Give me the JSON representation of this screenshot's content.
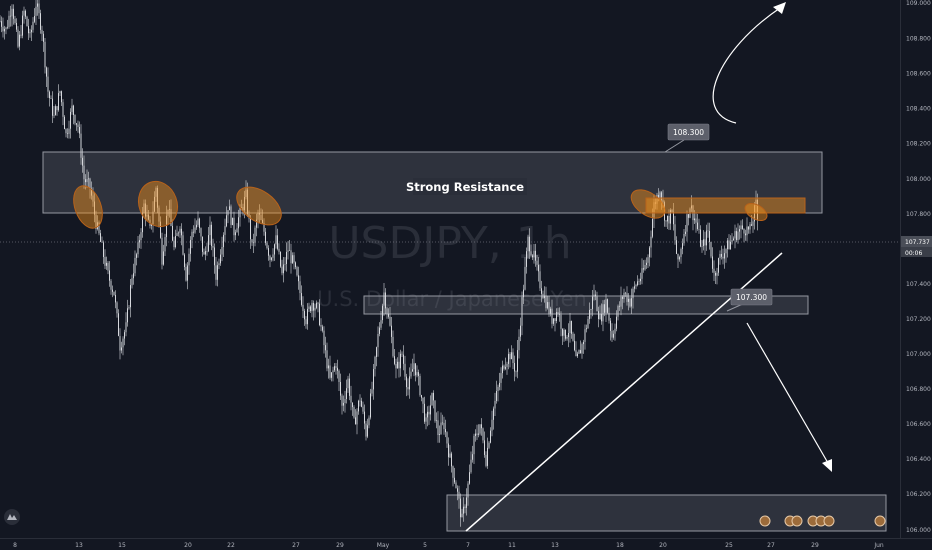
{
  "chart_data": {
    "type": "candlestick",
    "title": "USDJPY, 1h",
    "symbol": "USDJPY",
    "interval": "1h",
    "subtitle": "U.S. Dollar / Japanese Yen",
    "x_tick_labels": [
      "8",
      "13",
      "15",
      "20",
      "22",
      "27",
      "29",
      "May",
      "5",
      "7",
      "11",
      "13",
      "18",
      "20",
      "25",
      "27",
      "29",
      "Jun"
    ],
    "y_tick_labels": [
      "109.000",
      "108.800",
      "108.600",
      "108.400",
      "108.200",
      "108.000",
      "107.800",
      "107.600",
      "107.400",
      "107.200",
      "107.000",
      "106.800",
      "106.600",
      "106.400",
      "106.200",
      "106.000"
    ],
    "ylim": [
      105.99,
      109.02
    ],
    "current_price": "107.737",
    "countdown": "00:06",
    "price_path": [
      {
        "x": 0,
        "y": 108.9
      },
      {
        "x": 6,
        "y": 108.85
      },
      {
        "x": 12,
        "y": 109.0
      },
      {
        "x": 18,
        "y": 108.75
      },
      {
        "x": 24,
        "y": 108.95
      },
      {
        "x": 30,
        "y": 108.8
      },
      {
        "x": 36,
        "y": 109.0
      },
      {
        "x": 42,
        "y": 108.85
      },
      {
        "x": 48,
        "y": 108.5
      },
      {
        "x": 54,
        "y": 108.35
      },
      {
        "x": 60,
        "y": 108.5
      },
      {
        "x": 66,
        "y": 108.25
      },
      {
        "x": 72,
        "y": 108.4
      },
      {
        "x": 78,
        "y": 108.3
      },
      {
        "x": 84,
        "y": 108.0
      },
      {
        "x": 90,
        "y": 107.95
      },
      {
        "x": 96,
        "y": 107.75
      },
      {
        "x": 102,
        "y": 107.6
      },
      {
        "x": 108,
        "y": 107.45
      },
      {
        "x": 114,
        "y": 107.35
      },
      {
        "x": 120,
        "y": 107.05
      },
      {
        "x": 126,
        "y": 107.15
      },
      {
        "x": 132,
        "y": 107.45
      },
      {
        "x": 138,
        "y": 107.6
      },
      {
        "x": 144,
        "y": 107.85
      },
      {
        "x": 150,
        "y": 107.7
      },
      {
        "x": 156,
        "y": 107.95
      },
      {
        "x": 162,
        "y": 107.55
      },
      {
        "x": 168,
        "y": 107.85
      },
      {
        "x": 174,
        "y": 107.6
      },
      {
        "x": 180,
        "y": 107.75
      },
      {
        "x": 186,
        "y": 107.45
      },
      {
        "x": 192,
        "y": 107.7
      },
      {
        "x": 198,
        "y": 107.75
      },
      {
        "x": 204,
        "y": 107.55
      },
      {
        "x": 210,
        "y": 107.7
      },
      {
        "x": 216,
        "y": 107.45
      },
      {
        "x": 222,
        "y": 107.65
      },
      {
        "x": 228,
        "y": 107.85
      },
      {
        "x": 234,
        "y": 107.7
      },
      {
        "x": 240,
        "y": 107.8
      },
      {
        "x": 246,
        "y": 107.9
      },
      {
        "x": 252,
        "y": 107.6
      },
      {
        "x": 258,
        "y": 107.8
      },
      {
        "x": 264,
        "y": 107.7
      },
      {
        "x": 270,
        "y": 107.55
      },
      {
        "x": 276,
        "y": 107.65
      },
      {
        "x": 282,
        "y": 107.45
      },
      {
        "x": 288,
        "y": 107.6
      },
      {
        "x": 294,
        "y": 107.5
      },
      {
        "x": 300,
        "y": 107.35
      },
      {
        "x": 306,
        "y": 107.2
      },
      {
        "x": 312,
        "y": 107.3
      },
      {
        "x": 318,
        "y": 107.25
      },
      {
        "x": 324,
        "y": 107.05
      },
      {
        "x": 330,
        "y": 106.85
      },
      {
        "x": 336,
        "y": 106.95
      },
      {
        "x": 342,
        "y": 106.7
      },
      {
        "x": 348,
        "y": 106.85
      },
      {
        "x": 354,
        "y": 106.6
      },
      {
        "x": 360,
        "y": 106.75
      },
      {
        "x": 366,
        "y": 106.55
      },
      {
        "x": 372,
        "y": 106.8
      },
      {
        "x": 378,
        "y": 107.1
      },
      {
        "x": 384,
        "y": 107.35
      },
      {
        "x": 390,
        "y": 107.15
      },
      {
        "x": 396,
        "y": 106.9
      },
      {
        "x": 402,
        "y": 107.0
      },
      {
        "x": 408,
        "y": 106.8
      },
      {
        "x": 414,
        "y": 106.95
      },
      {
        "x": 420,
        "y": 106.8
      },
      {
        "x": 426,
        "y": 106.6
      },
      {
        "x": 432,
        "y": 106.75
      },
      {
        "x": 438,
        "y": 106.55
      },
      {
        "x": 444,
        "y": 106.6
      },
      {
        "x": 450,
        "y": 106.4
      },
      {
        "x": 456,
        "y": 106.25
      },
      {
        "x": 462,
        "y": 106.05
      },
      {
        "x": 468,
        "y": 106.25
      },
      {
        "x": 474,
        "y": 106.5
      },
      {
        "x": 480,
        "y": 106.6
      },
      {
        "x": 486,
        "y": 106.4
      },
      {
        "x": 492,
        "y": 106.65
      },
      {
        "x": 498,
        "y": 106.8
      },
      {
        "x": 504,
        "y": 106.95
      },
      {
        "x": 510,
        "y": 107.0
      },
      {
        "x": 516,
        "y": 106.9
      },
      {
        "x": 522,
        "y": 107.3
      },
      {
        "x": 528,
        "y": 107.65
      },
      {
        "x": 534,
        "y": 107.55
      },
      {
        "x": 540,
        "y": 107.4
      },
      {
        "x": 546,
        "y": 107.3
      },
      {
        "x": 552,
        "y": 107.2
      },
      {
        "x": 558,
        "y": 107.25
      },
      {
        "x": 564,
        "y": 107.1
      },
      {
        "x": 570,
        "y": 107.15
      },
      {
        "x": 576,
        "y": 106.95
      },
      {
        "x": 582,
        "y": 107.05
      },
      {
        "x": 588,
        "y": 107.2
      },
      {
        "x": 594,
        "y": 107.35
      },
      {
        "x": 600,
        "y": 107.2
      },
      {
        "x": 606,
        "y": 107.3
      },
      {
        "x": 612,
        "y": 107.1
      },
      {
        "x": 618,
        "y": 107.25
      },
      {
        "x": 624,
        "y": 107.35
      },
      {
        "x": 630,
        "y": 107.3
      },
      {
        "x": 636,
        "y": 107.4
      },
      {
        "x": 642,
        "y": 107.45
      },
      {
        "x": 648,
        "y": 107.55
      },
      {
        "x": 654,
        "y": 107.85
      },
      {
        "x": 660,
        "y": 107.95
      },
      {
        "x": 666,
        "y": 107.75
      },
      {
        "x": 672,
        "y": 107.8
      },
      {
        "x": 678,
        "y": 107.5
      },
      {
        "x": 684,
        "y": 107.7
      },
      {
        "x": 690,
        "y": 107.85
      },
      {
        "x": 696,
        "y": 107.75
      },
      {
        "x": 702,
        "y": 107.6
      },
      {
        "x": 708,
        "y": 107.7
      },
      {
        "x": 714,
        "y": 107.45
      },
      {
        "x": 720,
        "y": 107.55
      },
      {
        "x": 726,
        "y": 107.6
      },
      {
        "x": 732,
        "y": 107.65
      },
      {
        "x": 738,
        "y": 107.7
      },
      {
        "x": 744,
        "y": 107.72
      },
      {
        "x": 750,
        "y": 107.7
      },
      {
        "x": 756,
        "y": 107.85
      },
      {
        "x": 758,
        "y": 107.737
      }
    ],
    "resistance_zone": {
      "label": "Strong Resistance",
      "top": 108.3,
      "bottom": 107.93
    },
    "support_zone": {
      "top": 107.4,
      "bottom": 107.28
    },
    "bottom_zone": {
      "top": 106.22,
      "bottom": 105.99
    },
    "callouts": [
      "108.300",
      "107.300"
    ],
    "colors": {
      "background": "#131722",
      "candles": "#d6d8dd",
      "zone_fill": "#787b86",
      "orange": "#f7931a",
      "line": "#ffffff",
      "price_label_bg": "#4a4e58"
    }
  }
}
